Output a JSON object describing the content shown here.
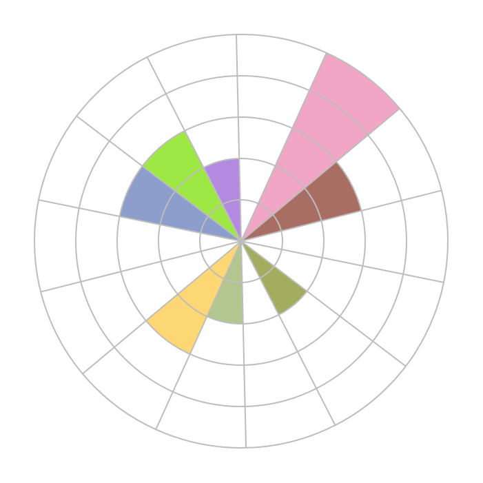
{
  "chart_data": {
    "type": "polar-bar",
    "title": "",
    "sector_count": 14,
    "ring_count": 5,
    "rlim": [
      0,
      5
    ],
    "grid": true,
    "legend": "none",
    "direction": "clockwise",
    "values": [
      0,
      5,
      3,
      0,
      0,
      2,
      0,
      2,
      3,
      0,
      0,
      3,
      3,
      2
    ],
    "colors": [
      "#ffffff",
      "#f2a6c6",
      "#a96e63",
      "#ffffff",
      "#ffffff",
      "#a3ad5f",
      "#ffffff",
      "#b3c68f",
      "#fed775",
      "#ffffff",
      "#ffffff",
      "#8d9dcc",
      "#9ee846",
      "#b48ae0"
    ],
    "grid_color": "#bdbdbd"
  }
}
